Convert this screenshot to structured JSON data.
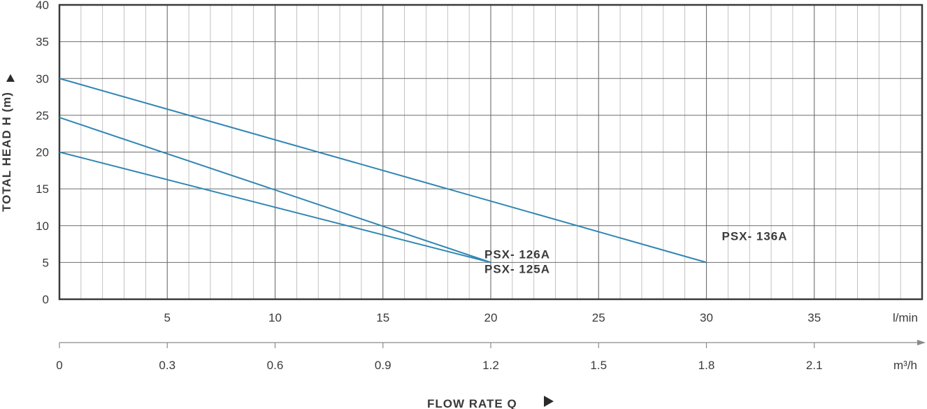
{
  "colors": {
    "line": "#2f86b3",
    "grid": "#6d6d6d",
    "minor_grid": "#b3b3b3",
    "text": "#3a3a3a",
    "axis": "#8a8a8a"
  },
  "chart_data": {
    "type": "line",
    "title": "",
    "ylabel": "TOTAL HEAD H (m)",
    "xlabel": "FLOW RATE Q",
    "ylim": [
      0,
      40
    ],
    "xlim": [
      0,
      40
    ],
    "y_ticks": [
      "0",
      "5",
      "10",
      "15",
      "20",
      "25",
      "30",
      "35",
      "40"
    ],
    "x_ticks_lmin": [
      "5",
      "10",
      "15",
      "20",
      "25",
      "30",
      "35"
    ],
    "x_unit_lmin": "l/min",
    "x_ticks_m3h": [
      "0",
      "0.3",
      "0.6",
      "0.9",
      "1.2",
      "1.5",
      "1.8",
      "2.1"
    ],
    "x_unit_m3h": "m³/h",
    "grid": true,
    "series": [
      {
        "name": "PSX- 136A",
        "x": [
          0,
          30
        ],
        "y": [
          30,
          5
        ]
      },
      {
        "name": "PSX- 126A",
        "x": [
          0,
          20
        ],
        "y": [
          24.7,
          5
        ]
      },
      {
        "name": "PSX- 125A",
        "x": [
          0,
          20
        ],
        "y": [
          20,
          5
        ]
      }
    ]
  }
}
